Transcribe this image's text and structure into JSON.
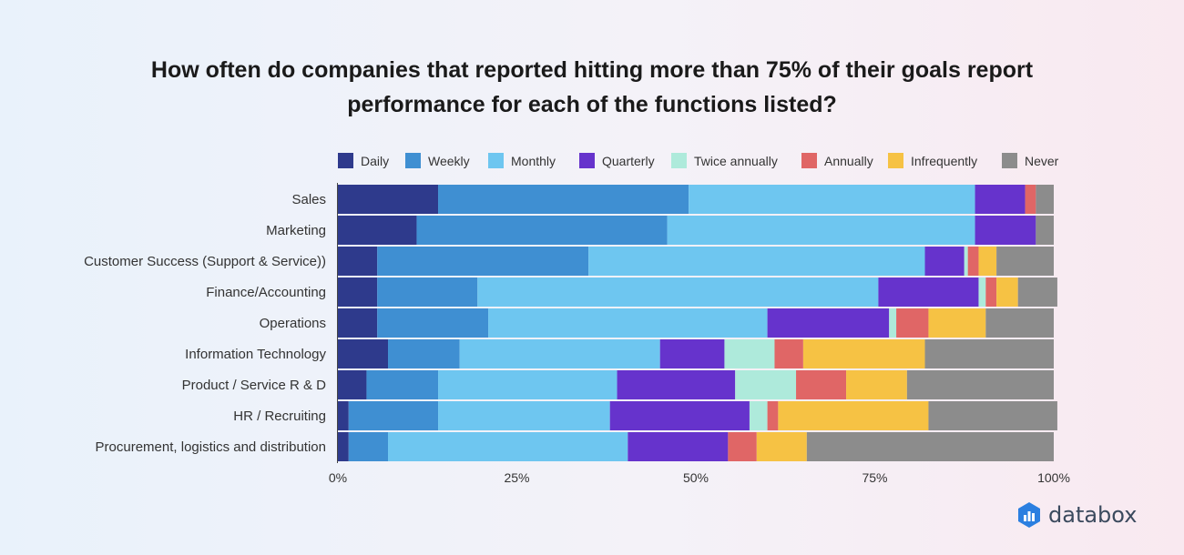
{
  "chart_data": {
    "type": "bar",
    "orientation": "horizontal",
    "stacked": true,
    "percent_stacked": true,
    "title_lines": [
      "How often do companies that reported hitting more than 75% of their goals report",
      "performance for each of the functions listed?"
    ],
    "categories": [
      "Sales",
      "Marketing",
      "Customer Success (Support & Service))",
      "Finance/Accounting",
      "Operations",
      "Information Technology",
      "Product / Service R & D",
      "HR / Recruiting",
      "Procurement, logistics and distribution"
    ],
    "series": [
      {
        "name": "Daily",
        "color": "#2e3a8c",
        "values": [
          14,
          11,
          5.5,
          5.5,
          5.5,
          7,
          4,
          1.5,
          1.5
        ]
      },
      {
        "name": "Weekly",
        "color": "#3f8fd2",
        "values": [
          35,
          35,
          29.5,
          14,
          15.5,
          10,
          10,
          12.5,
          5.5
        ]
      },
      {
        "name": "Monthly",
        "color": "#6ec6f0",
        "values": [
          40,
          43,
          47,
          56,
          39,
          28,
          25,
          24,
          33.5
        ]
      },
      {
        "name": "Quarterly",
        "color": "#6633cc",
        "values": [
          7,
          8.5,
          5.5,
          14,
          17,
          9,
          16.5,
          19.5,
          14
        ]
      },
      {
        "name": "Twice annually",
        "color": "#aeeadb",
        "values": [
          0,
          0,
          0.5,
          1,
          1,
          7,
          8.5,
          2.5,
          0
        ]
      },
      {
        "name": "Annually",
        "color": "#e06666",
        "values": [
          1.5,
          0,
          1.5,
          1.5,
          4.5,
          4,
          7,
          1.5,
          4
        ]
      },
      {
        "name": "Infrequently",
        "color": "#f6c244",
        "values": [
          0,
          0,
          2.5,
          3,
          8,
          17,
          8.5,
          21,
          7
        ]
      },
      {
        "name": "Never",
        "color": "#8c8c8c",
        "values": [
          2.5,
          2.5,
          8,
          5.5,
          9.5,
          18,
          20.5,
          18,
          34.5
        ]
      }
    ],
    "x_ticks": [
      "0%",
      "25%",
      "50%",
      "75%",
      "100%"
    ],
    "xlim": [
      0,
      100
    ],
    "legend_position": "top",
    "grid": false
  },
  "brand": {
    "name": "databox"
  }
}
